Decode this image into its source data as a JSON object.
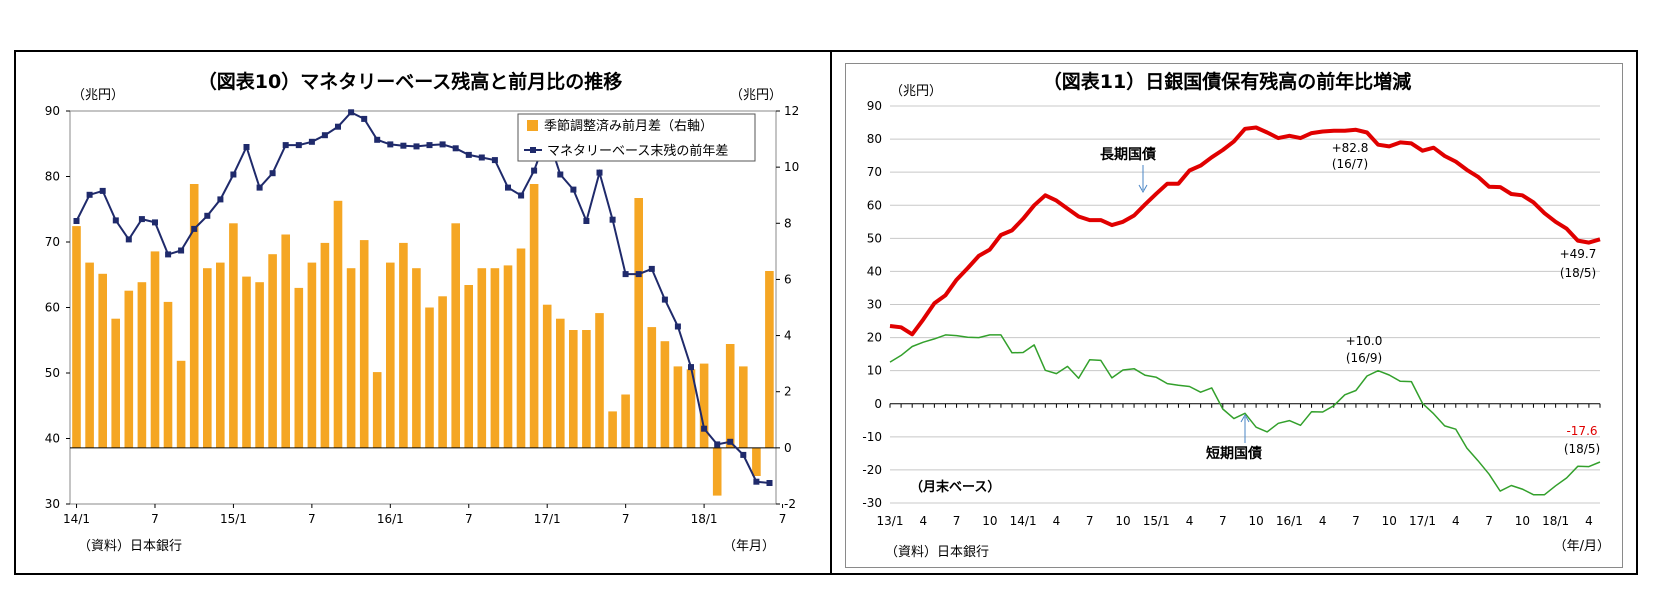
{
  "chart_data": [
    {
      "type": "bar+line",
      "title": "（図表10）マネタリーベース残高と前月比の推移",
      "left_unit": "（兆円）",
      "right_unit": "（兆円）",
      "x_unit": "（年月）",
      "source": "（資料）日本銀行",
      "left_axis": {
        "range": [
          30,
          90
        ],
        "ticks": [
          "30",
          "40",
          "50",
          "60",
          "70",
          "80",
          "90"
        ]
      },
      "right_axis": {
        "range": [
          -2,
          12
        ],
        "ticks": [
          "-2",
          "0",
          "2",
          "4",
          "6",
          "8",
          "10",
          "12"
        ]
      },
      "x_tick_labels": [
        {
          "index": 0,
          "label": "14/1"
        },
        {
          "index": 6,
          "label": "7"
        },
        {
          "index": 12,
          "label": "15/1"
        },
        {
          "index": 18,
          "label": "7"
        },
        {
          "index": 24,
          "label": "16/1"
        },
        {
          "index": 30,
          "label": "7"
        },
        {
          "index": 36,
          "label": "17/1"
        },
        {
          "index": 42,
          "label": "7"
        },
        {
          "index": 48,
          "label": "18/1"
        },
        {
          "index": 54,
          "label": "7"
        }
      ],
      "legend_position": "top-right",
      "series": [
        {
          "name": "季節調整済み前月差（右軸）",
          "type": "bar",
          "axis": "right",
          "color": "#f5a623",
          "values": [
            7.9,
            6.6,
            6.2,
            4.6,
            5.6,
            5.9,
            7.0,
            5.2,
            3.1,
            9.4,
            6.4,
            6.6,
            8.0,
            6.1,
            5.9,
            6.9,
            7.6,
            5.7,
            6.6,
            7.3,
            8.8,
            6.4,
            7.4,
            2.7,
            6.6,
            7.3,
            6.4,
            5.0,
            5.4,
            8.0,
            5.8,
            6.4,
            6.4,
            6.5,
            7.1,
            9.4,
            5.1,
            4.6,
            4.2,
            4.2,
            4.8,
            1.3,
            1.9,
            8.9,
            4.3,
            3.8,
            2.9,
            2.8,
            3.0,
            -1.7,
            3.7,
            2.9,
            -1.0,
            6.3
          ]
        },
        {
          "name": "マネタリーベース末残の前年差",
          "type": "line",
          "axis": "left",
          "color": "#1f2a6b",
          "values": [
            73.2,
            77.2,
            77.8,
            73.3,
            70.4,
            73.5,
            73.0,
            68.1,
            68.7,
            72.0,
            74.0,
            76.5,
            80.3,
            84.5,
            78.3,
            80.5,
            84.8,
            84.8,
            85.3,
            86.3,
            87.6,
            89.8,
            88.8,
            85.6,
            84.9,
            84.7,
            84.6,
            84.8,
            84.9,
            84.3,
            83.3,
            82.9,
            82.5,
            78.3,
            77.1,
            80.9,
            86.4,
            80.3,
            78.0,
            73.2,
            80.6,
            73.4,
            65.1,
            65.1,
            65.9,
            61.2,
            57.1,
            50.9,
            41.5,
            39.1,
            39.5,
            37.5,
            33.4,
            33.2
          ]
        }
      ]
    },
    {
      "type": "line",
      "title": "（図表11）日銀国債保有残高の前年比増減",
      "y_unit": "（兆円）",
      "x_unit": "（年/月）",
      "note": "（月末ベース）",
      "source": "（資料）日本銀行",
      "y_axis": {
        "range": [
          -30,
          90
        ],
        "ticks": [
          "-30",
          "-20",
          "-10",
          "0",
          "10",
          "20",
          "30",
          "40",
          "50",
          "60",
          "70",
          "80",
          "90"
        ]
      },
      "x_tick_labels": [
        {
          "index": 0,
          "label": "13/1"
        },
        {
          "index": 3,
          "label": "4"
        },
        {
          "index": 6,
          "label": "7"
        },
        {
          "index": 9,
          "label": "10"
        },
        {
          "index": 12,
          "label": "14/1"
        },
        {
          "index": 15,
          "label": "4"
        },
        {
          "index": 18,
          "label": "7"
        },
        {
          "index": 21,
          "label": "10"
        },
        {
          "index": 24,
          "label": "15/1"
        },
        {
          "index": 27,
          "label": "4"
        },
        {
          "index": 30,
          "label": "7"
        },
        {
          "index": 33,
          "label": "10"
        },
        {
          "index": 36,
          "label": "16/1"
        },
        {
          "index": 39,
          "label": "4"
        },
        {
          "index": 42,
          "label": "7"
        },
        {
          "index": 45,
          "label": "10"
        },
        {
          "index": 48,
          "label": "17/1"
        },
        {
          "index": 51,
          "label": "4"
        },
        {
          "index": 54,
          "label": "7"
        },
        {
          "index": 57,
          "label": "10"
        },
        {
          "index": 60,
          "label": "18/1"
        },
        {
          "index": 63,
          "label": "4"
        }
      ],
      "series": [
        {
          "name": "長期国債",
          "color": "#e00000",
          "values": [
            23.5,
            23.1,
            21.0,
            25.5,
            30.4,
            32.8,
            37.5,
            41.0,
            44.7,
            46.6,
            51.0,
            52.4,
            55.9,
            60.0,
            63.0,
            61.4,
            59.0,
            56.6,
            55.5,
            55.5,
            54.0,
            55.0,
            56.9,
            60.3,
            63.5,
            66.5,
            66.5,
            70.5,
            72.0,
            74.5,
            76.7,
            79.3,
            83.1,
            83.5,
            82.0,
            80.3,
            81.0,
            80.3,
            81.8,
            82.3,
            82.5,
            82.5,
            82.8,
            82.0,
            78.3,
            77.8,
            79.0,
            78.7,
            76.5,
            77.4,
            74.9,
            73.2,
            70.7,
            68.6,
            65.6,
            65.5,
            63.4,
            63.0,
            60.9,
            57.6,
            55.0,
            52.9,
            49.3,
            48.7,
            49.7
          ]
        },
        {
          "name": "短期国債",
          "color": "#33a02c",
          "values": [
            12.6,
            14.6,
            17.3,
            18.6,
            19.6,
            20.8,
            20.6,
            20.1,
            20.0,
            20.8,
            20.8,
            15.4,
            15.5,
            17.8,
            10.1,
            9.1,
            11.3,
            7.7,
            13.3,
            13.1,
            7.8,
            10.2,
            10.6,
            8.6,
            8.0,
            6.1,
            5.6,
            5.2,
            3.5,
            4.8,
            -1.6,
            -4.5,
            -2.9,
            -7.1,
            -8.5,
            -5.9,
            -5.1,
            -6.5,
            -2.4,
            -2.5,
            -0.6,
            2.7,
            4.0,
            8.4,
            10.0,
            8.7,
            6.8,
            6.7,
            0.1,
            -3.0,
            -6.7,
            -7.7,
            -13.4,
            -17.2,
            -21.3,
            -26.4,
            -24.7,
            -25.8,
            -27.5,
            -27.5,
            -24.8,
            -22.4,
            -18.9,
            -19.0,
            -17.6
          ]
        }
      ],
      "annotations": [
        {
          "value": "+82.8",
          "period": "(16/7)"
        },
        {
          "value": "+49.7",
          "period": "(18/5)"
        },
        {
          "value": "+10.0",
          "period": "(16/9)"
        },
        {
          "value": "-17.6",
          "period": "(18/5)",
          "color": "#e00000"
        }
      ]
    }
  ]
}
